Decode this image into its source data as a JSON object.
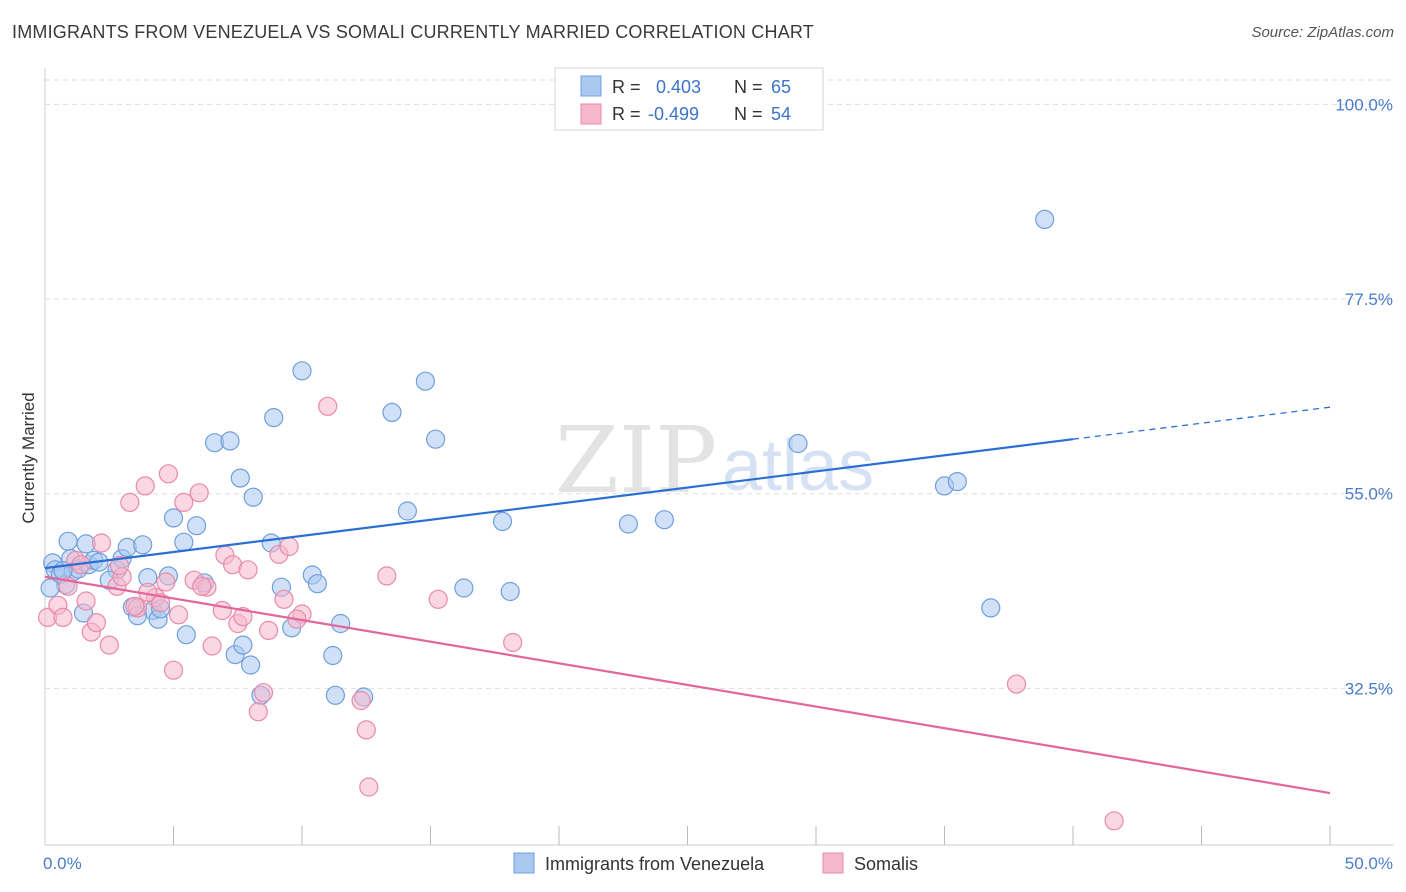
{
  "title": "IMMIGRANTS FROM VENEZUELA VS SOMALI CURRENTLY MARRIED CORRELATION CHART",
  "source": "Source: ZipAtlas.com",
  "colors": {
    "blue_fill": "#a9c8f0",
    "blue_stroke": "#6f9fdc",
    "blue_line": "#2a6fd4",
    "pink_fill": "#f6b6cb",
    "pink_stroke": "#e88aab",
    "pink_line": "#e2679a",
    "value_text": "#3d73c9",
    "grid": "#dddddd"
  },
  "watermark": {
    "zip": "ZIP",
    "atlas": "atlas"
  },
  "legend": {
    "rows": [
      {
        "r_label": "R =",
        "r_value": "0.403",
        "n_label": "N =",
        "n_value": "65",
        "series": "blue"
      },
      {
        "r_label": "R =",
        "r_value": "-0.499",
        "n_label": "N =",
        "n_value": "54",
        "series": "pink"
      }
    ]
  },
  "bottom_legend": [
    "Immigrants from Venezuela",
    "Somalis"
  ],
  "chart_data": {
    "type": "scatter",
    "title": "IMMIGRANTS FROM VENEZUELA VS SOMALI CURRENTLY MARRIED CORRELATION CHART",
    "xlabel": "",
    "ylabel": "Currently Married",
    "xlim": [
      0,
      50
    ],
    "ylim": [
      14.4,
      104.2
    ],
    "x_tick_labels": [
      "0.0%",
      "50.0%"
    ],
    "y_ticks": [
      32.5,
      55.0,
      77.5,
      100.0
    ],
    "y_tick_labels": [
      "32.5%",
      "55.0%",
      "77.5%",
      "100.0%"
    ],
    "series": [
      {
        "name": "Immigrants from Venezuela",
        "color": "#a9c8f0",
        "trend": {
          "x0": 0,
          "y0": 46.4,
          "x1": 40,
          "y1": 61.3,
          "dash_x1": 50,
          "dash_y1": 65.0
        },
        "points": [
          [
            0.3,
            47.0
          ],
          [
            0.4,
            46.2
          ],
          [
            0.6,
            45.7
          ],
          [
            0.8,
            44.5
          ],
          [
            0.9,
            49.5
          ],
          [
            1.0,
            47.5
          ],
          [
            1.1,
            46.0
          ],
          [
            1.3,
            46.3
          ],
          [
            1.6,
            49.2
          ],
          [
            1.7,
            46.8
          ],
          [
            1.9,
            47.3
          ],
          [
            2.1,
            47.1
          ],
          [
            2.8,
            46.2
          ],
          [
            3.0,
            47.5
          ],
          [
            3.2,
            48.8
          ],
          [
            3.4,
            41.9
          ],
          [
            3.8,
            49.1
          ],
          [
            4.0,
            45.3
          ],
          [
            4.2,
            41.5
          ],
          [
            4.4,
            40.5
          ],
          [
            4.5,
            41.7
          ],
          [
            4.8,
            45.5
          ],
          [
            5.0,
            52.2
          ],
          [
            5.4,
            49.4
          ],
          [
            5.9,
            51.3
          ],
          [
            6.2,
            44.7
          ],
          [
            6.6,
            60.9
          ],
          [
            7.2,
            61.1
          ],
          [
            7.4,
            36.4
          ],
          [
            7.6,
            56.8
          ],
          [
            7.7,
            37.5
          ],
          [
            8.0,
            35.2
          ],
          [
            8.1,
            54.6
          ],
          [
            8.4,
            31.7
          ],
          [
            8.8,
            49.3
          ],
          [
            8.9,
            63.8
          ],
          [
            9.2,
            44.2
          ],
          [
            9.6,
            39.5
          ],
          [
            10.0,
            69.2
          ],
          [
            10.4,
            45.6
          ],
          [
            10.6,
            44.6
          ],
          [
            11.2,
            36.3
          ],
          [
            11.3,
            31.7
          ],
          [
            11.5,
            40.0
          ],
          [
            13.5,
            64.4
          ],
          [
            14.1,
            53.0
          ],
          [
            14.8,
            68.0
          ],
          [
            15.2,
            61.3
          ],
          [
            16.3,
            44.1
          ],
          [
            17.8,
            51.8
          ],
          [
            18.1,
            43.7
          ],
          [
            22.7,
            51.5
          ],
          [
            24.1,
            52.0
          ],
          [
            29.3,
            60.8
          ],
          [
            35.0,
            55.9
          ],
          [
            35.5,
            56.4
          ],
          [
            36.8,
            41.8
          ],
          [
            38.9,
            86.7
          ],
          [
            1.5,
            41.2
          ],
          [
            3.6,
            40.9
          ],
          [
            0.2,
            44.1
          ],
          [
            5.5,
            38.7
          ],
          [
            2.5,
            45.0
          ],
          [
            0.7,
            46.1
          ],
          [
            12.4,
            31.5
          ]
        ]
      },
      {
        "name": "Somalis",
        "color": "#f6b6cb",
        "trend": {
          "x0": 0,
          "y0": 45.4,
          "x1": 50,
          "y1": 20.4
        },
        "points": [
          [
            0.1,
            40.7
          ],
          [
            0.5,
            42.1
          ],
          [
            0.7,
            40.7
          ],
          [
            1.2,
            47.3
          ],
          [
            1.6,
            42.6
          ],
          [
            1.8,
            39.0
          ],
          [
            2.0,
            40.1
          ],
          [
            2.2,
            49.3
          ],
          [
            2.5,
            37.5
          ],
          [
            2.8,
            44.3
          ],
          [
            3.0,
            45.4
          ],
          [
            3.3,
            54.0
          ],
          [
            3.6,
            41.8
          ],
          [
            3.9,
            55.9
          ],
          [
            4.3,
            43.0
          ],
          [
            4.5,
            42.4
          ],
          [
            4.7,
            44.8
          ],
          [
            4.8,
            57.3
          ],
          [
            5.0,
            34.6
          ],
          [
            5.2,
            41.0
          ],
          [
            5.4,
            54.0
          ],
          [
            5.8,
            45.0
          ],
          [
            6.0,
            55.1
          ],
          [
            6.3,
            44.2
          ],
          [
            6.5,
            37.4
          ],
          [
            7.0,
            47.9
          ],
          [
            7.3,
            46.8
          ],
          [
            7.5,
            40.0
          ],
          [
            7.7,
            40.8
          ],
          [
            7.9,
            46.2
          ],
          [
            8.3,
            29.8
          ],
          [
            8.5,
            32.0
          ],
          [
            8.7,
            39.2
          ],
          [
            9.1,
            48.0
          ],
          [
            9.3,
            42.8
          ],
          [
            9.5,
            48.9
          ],
          [
            10.0,
            41.1
          ],
          [
            11.0,
            65.1
          ],
          [
            12.3,
            31.1
          ],
          [
            12.5,
            27.7
          ],
          [
            12.6,
            21.1
          ],
          [
            15.3,
            42.8
          ],
          [
            18.2,
            37.8
          ],
          [
            37.8,
            33.0
          ],
          [
            41.6,
            17.2
          ],
          [
            0.9,
            44.3
          ],
          [
            2.9,
            46.7
          ],
          [
            3.5,
            42.0
          ],
          [
            6.9,
            41.5
          ],
          [
            1.4,
            46.8
          ],
          [
            4.0,
            43.6
          ],
          [
            6.1,
            44.3
          ],
          [
            9.8,
            40.5
          ],
          [
            13.3,
            45.5
          ]
        ]
      }
    ]
  }
}
